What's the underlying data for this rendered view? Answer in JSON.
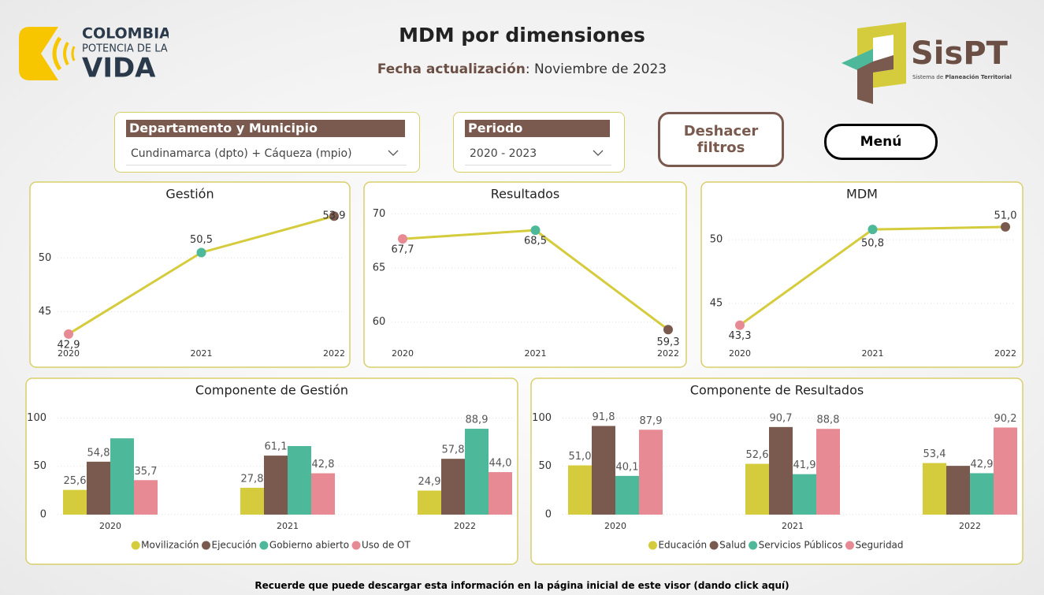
{
  "header": {
    "logo_left": [
      "COLOMBIA",
      "POTENCIA DE LA",
      "VIDA"
    ],
    "title": "MDM por dimensiones",
    "update_label": "Fecha actualización",
    "update_value": ": Noviembre de 2023",
    "logo_right": {
      "name": "SisPT",
      "tagline_prefix": "Sistema de ",
      "tagline_bold": "Planeación Territorial"
    }
  },
  "filters": [
    {
      "label": "Departamento y Municipio",
      "value": "Cundinamarca (dpto) + Cáqueza (mpio)"
    },
    {
      "label": "Periodo",
      "value": "2020 - 2023"
    }
  ],
  "buttons": [
    "Deshacer filtros",
    "Menú"
  ],
  "footer": "Recuerde que puede descargar esta información en la página inicial de este visor (dando click aquí)",
  "chart_data": [
    {
      "type": "line",
      "title": "Gestión",
      "categories": [
        "2020",
        "2021",
        "2022"
      ],
      "values": [
        42.9,
        50.5,
        53.9
      ],
      "value_labels": [
        "42,9",
        "50,5",
        "53,9"
      ],
      "color": "#d4cc3c",
      "point_colors": [
        "#e88a94",
        "#4db89a",
        "#7a5a4e"
      ],
      "ylim": [
        42.3,
        54.8
      ],
      "yticks": [
        45,
        50
      ],
      "grid": true
    },
    {
      "type": "line",
      "title": "Resultados",
      "categories": [
        "2020",
        "2021",
        "2022"
      ],
      "values": [
        67.7,
        68.5,
        59.3
      ],
      "value_labels": [
        "67,7",
        "68,5",
        "59,3"
      ],
      "color": "#d4cc3c",
      "point_colors": [
        "#e88a94",
        "#4db89a",
        "#7a5a4e"
      ],
      "ylim": [
        58.3,
        70.7
      ],
      "yticks": [
        60,
        65,
        70
      ],
      "grid": true
    },
    {
      "type": "line",
      "title": "MDM",
      "categories": [
        "2020",
        "2021",
        "2022"
      ],
      "values": [
        43.3,
        50.8,
        51.0
      ],
      "value_labels": [
        "43,3",
        "50,8",
        "51,0"
      ],
      "color": "#d4cc3c",
      "point_colors": [
        "#e88a94",
        "#4db89a",
        "#7a5a4e"
      ],
      "ylim": [
        42.1,
        52.6
      ],
      "yticks": [
        45,
        50
      ],
      "grid": true
    },
    {
      "type": "bar",
      "title": "Componente de Gestión",
      "categories": [
        "2020",
        "2021",
        "2022"
      ],
      "series": [
        {
          "name": "Movilización",
          "color": "#d4cc3c",
          "values": [
            25.6,
            27.8,
            24.9
          ],
          "value_labels": [
            "25,6",
            "27,8",
            "24,9"
          ]
        },
        {
          "name": "Ejecución",
          "color": "#7a5a4e",
          "values": [
            54.8,
            61.1,
            57.8
          ],
          "value_labels": [
            "54,8",
            "61,1",
            "57,8"
          ]
        },
        {
          "name": "Gobierno abierto",
          "color": "#4db89a",
          "values": [
            79,
            71,
            88.9
          ],
          "value_labels": [
            null,
            null,
            "88,9"
          ]
        },
        {
          "name": "Uso de OT",
          "color": "#e88a94",
          "values": [
            35.7,
            42.8,
            44.0
          ],
          "value_labels": [
            "35,7",
            "42,8",
            "44,0"
          ]
        }
      ],
      "ylim": [
        0,
        102
      ],
      "yticks": [
        0,
        50,
        100
      ],
      "grid": true,
      "legend": "bottom"
    },
    {
      "type": "bar",
      "title": "Componente de Resultados",
      "categories": [
        "2020",
        "2021",
        "2022"
      ],
      "series": [
        {
          "name": "Educación",
          "color": "#d4cc3c",
          "values": [
            51.0,
            52.6,
            53.4
          ],
          "value_labels": [
            "51,0",
            "52,6",
            "53,4"
          ]
        },
        {
          "name": "Salud",
          "color": "#7a5a4e",
          "values": [
            91.8,
            90.7,
            50.5
          ],
          "value_labels": [
            "91,8",
            "90,7",
            null
          ]
        },
        {
          "name": "Servicios Públicos",
          "color": "#4db89a",
          "values": [
            40.1,
            41.9,
            42.9
          ],
          "value_labels": [
            "40,1",
            "41,9",
            "42,9"
          ]
        },
        {
          "name": "Seguridad",
          "color": "#e88a94",
          "values": [
            87.9,
            88.8,
            90.2
          ],
          "value_labels": [
            "87,9",
            "88,8",
            "90,2"
          ]
        }
      ],
      "ylim": [
        0,
        102
      ],
      "yticks": [
        0,
        50,
        100
      ],
      "grid": true,
      "legend": "bottom"
    }
  ]
}
